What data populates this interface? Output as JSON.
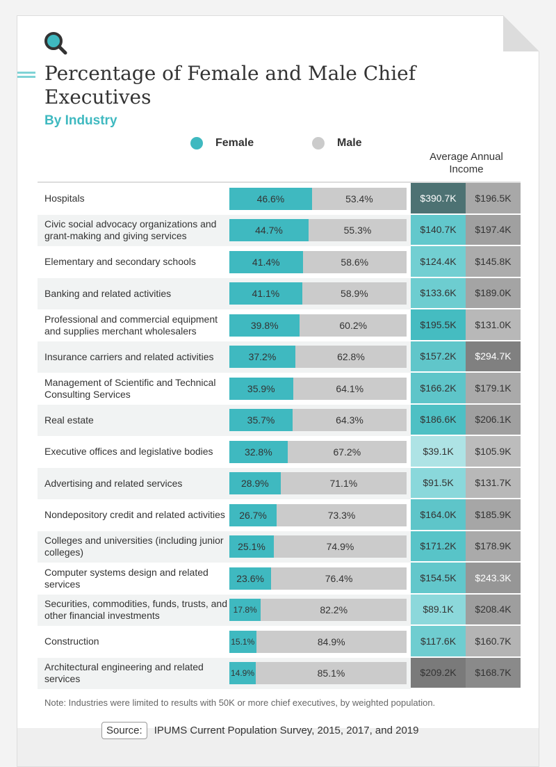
{
  "header": {
    "title": "Percentage of Female and Male Chief Executives",
    "subtitle": "By Industry"
  },
  "legend": {
    "female": "Female",
    "male": "Male",
    "female_color": "#3fb9c0",
    "male_color": "#cbcbcb"
  },
  "income_header": "Average Annual Income",
  "chart_data": {
    "type": "table",
    "title": "Percentage of Female and Male Chief Executives",
    "subtitle": "By Industry",
    "columns": [
      "Industry",
      "Female",
      "Male",
      "Average Annual Income (Female)",
      "Average Annual Income (Male)"
    ],
    "rows": [
      {
        "industry": "Hospitals",
        "female": "46.6%",
        "male": "53.4%",
        "female_pct": 46.6,
        "inc_f": "$390.7K",
        "inc_m": "$196.5K",
        "cf": "#4d7273",
        "cm": "#a8a8a8",
        "tf": "#fff",
        "tm": "#333"
      },
      {
        "industry": "Civic social advocacy organizations and grant-making and giving services",
        "female": "44.7%",
        "male": "55.3%",
        "female_pct": 44.7,
        "inc_f": "$140.7K",
        "inc_m": "$197.4K",
        "cf": "#62c8cc",
        "cm": "#a0a0a0",
        "tf": "#333",
        "tm": "#333"
      },
      {
        "industry": "Elementary and secondary schools",
        "female": "41.4%",
        "male": "58.6%",
        "female_pct": 41.4,
        "inc_f": "$124.4K",
        "inc_m": "$145.8K",
        "cf": "#72cfd2",
        "cm": "#acacac",
        "tf": "#333",
        "tm": "#333"
      },
      {
        "industry": "Banking and related activities",
        "female": "41.1%",
        "male": "58.9%",
        "female_pct": 41.1,
        "inc_f": "$133.6K",
        "inc_m": "$189.0K",
        "cf": "#6dcdd0",
        "cm": "#a4a4a4",
        "tf": "#333",
        "tm": "#333"
      },
      {
        "industry": "Professional and commercial equipment and supplies merchant wholesalers",
        "female": "39.8%",
        "male": "60.2%",
        "female_pct": 39.8,
        "inc_f": "$195.5K",
        "inc_m": "$131.0K",
        "cf": "#45bcc1",
        "cm": "#b8b8b8",
        "tf": "#333",
        "tm": "#333"
      },
      {
        "industry": "Insurance carriers and related activities",
        "female": "37.2%",
        "male": "62.8%",
        "female_pct": 37.2,
        "inc_f": "$157.2K",
        "inc_m": "$294.7K",
        "cf": "#60c6ca",
        "cm": "#808080",
        "tf": "#333",
        "tm": "#fff"
      },
      {
        "industry": "Management of Scientific and Technical Consulting Services",
        "female": "35.9%",
        "male": "64.1%",
        "female_pct": 35.9,
        "inc_f": "$166.2K",
        "inc_m": "$179.1K",
        "cf": "#5ec5c9",
        "cm": "#aaaaaa",
        "tf": "#333",
        "tm": "#333"
      },
      {
        "industry": "Real estate",
        "female": "35.7%",
        "male": "64.3%",
        "female_pct": 35.7,
        "inc_f": "$186.6K",
        "inc_m": "$206.1K",
        "cf": "#4ec0c4",
        "cm": "#a0a0a0",
        "tf": "#333",
        "tm": "#333"
      },
      {
        "industry": "Executive offices and legislative bodies",
        "female": "32.8%",
        "male": "67.2%",
        "female_pct": 32.8,
        "inc_f": "$39.1K",
        "inc_m": "$105.9K",
        "cf": "#aee3e5",
        "cm": "#bcbcbc",
        "tf": "#333",
        "tm": "#333"
      },
      {
        "industry": "Advertising and related services",
        "female": "28.9%",
        "male": "71.1%",
        "female_pct": 28.9,
        "inc_f": "$91.5K",
        "inc_m": "$131.7K",
        "cf": "#8ad8db",
        "cm": "#b8b8b8",
        "tf": "#333",
        "tm": "#333"
      },
      {
        "industry": "Nondepository credit and related activities",
        "female": "26.7%",
        "male": "73.3%",
        "female_pct": 26.7,
        "inc_f": "$164.0K",
        "inc_m": "$185.9K",
        "cf": "#5ec5c9",
        "cm": "#a6a6a6",
        "tf": "#333",
        "tm": "#333"
      },
      {
        "industry": "Colleges and universities (including junior colleges)",
        "female": "25.1%",
        "male": "74.9%",
        "female_pct": 25.1,
        "inc_f": "$171.2K",
        "inc_m": "$178.9K",
        "cf": "#58c4c8",
        "cm": "#aaaaaa",
        "tf": "#333",
        "tm": "#333"
      },
      {
        "industry": "Computer systems design and related services",
        "female": "23.6%",
        "male": "76.4%",
        "female_pct": 23.6,
        "inc_f": "$154.5K",
        "inc_m": "$243.3K",
        "cf": "#62c7cb",
        "cm": "#969696",
        "tf": "#333",
        "tm": "#fff"
      },
      {
        "industry": "Securities, commodities, funds, trusts, and other financial investments",
        "female": "17.8%",
        "male": "82.2%",
        "female_pct": 17.8,
        "inc_f": "$89.1K",
        "inc_m": "$208.4K",
        "cf": "#8cd8db",
        "cm": "#9e9e9e",
        "tf": "#333",
        "tm": "#333"
      },
      {
        "industry": "Construction",
        "female": "15.1%",
        "male": "84.9%",
        "female_pct": 15.1,
        "inc_f": "$117.6K",
        "inc_m": "$160.7K",
        "cf": "#6fcdd0",
        "cm": "#b4b4b4",
        "tf": "#333",
        "tm": "#333"
      },
      {
        "industry": "Architectural engineering and related services",
        "female": "14.9%",
        "male": "85.1%",
        "female_pct": 14.9,
        "inc_f": "$209.2K",
        "inc_m": "$168.7K",
        "cf": "#7a7a7a",
        "cm": "#8a8a8a",
        "tf": "#333",
        "tm": "#333"
      }
    ]
  },
  "note": "Note: Industries were limited to results with 50K or more chief executives, by weighted population.",
  "source": {
    "label": "Source:",
    "text": "IPUMS Current Population Survey, 2015, 2017, and 2019"
  }
}
